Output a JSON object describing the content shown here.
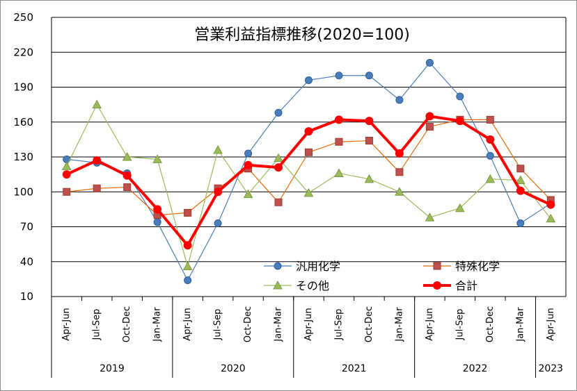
{
  "chart_data": {
    "type": "line",
    "title": "営業利益指標推移(2020=100)",
    "xlabel": "",
    "ylabel": "",
    "ylim": [
      10,
      250
    ],
    "yticks": [
      10,
      40,
      70,
      100,
      130,
      160,
      190,
      220,
      250
    ],
    "grid": "horizontal",
    "legend_position": "lower-right",
    "categories": [
      "Apr-Jun",
      "Jul-Sep",
      "Oct-Dec",
      "Jan-Mar",
      "Apr-Jun",
      "Jul-Sep",
      "Oct-Dec",
      "Jan-Mar",
      "Apr-Jun",
      "Jul-Sep",
      "Oct-Dec",
      "Jan-Mar",
      "Apr-Jun",
      "Jul-Sep",
      "Oct-Dec",
      "Jan-Mar",
      "Apr-Jun"
    ],
    "year_groups": [
      {
        "label": "2019",
        "span": 4
      },
      {
        "label": "2020",
        "span": 4
      },
      {
        "label": "2021",
        "span": 4
      },
      {
        "label": "2022",
        "span": 4
      },
      {
        "label": "2023",
        "span": 1
      }
    ],
    "series": [
      {
        "name": "汎用化学",
        "color": "#4a7ebb",
        "marker": "circle",
        "width": 1.2,
        "values": [
          128,
          125,
          116,
          74,
          24,
          73,
          133,
          168,
          196,
          200,
          200,
          179,
          211,
          182,
          131,
          73,
          90
        ]
      },
      {
        "name": "特殊化学",
        "color": "#e36c09",
        "marker": "square",
        "width": 1.2,
        "values": [
          100,
          103,
          104,
          80,
          82,
          103,
          120,
          91,
          134,
          143,
          144,
          117,
          156,
          162,
          162,
          120,
          93
        ]
      },
      {
        "name": "その他",
        "color": "#9bbb59",
        "marker": "triangle",
        "width": 1.2,
        "values": [
          122,
          175,
          130,
          128,
          36,
          136,
          98,
          129,
          99,
          116,
          111,
          100,
          78,
          86,
          111,
          110,
          77
        ]
      },
      {
        "name": "合計",
        "color": "#ff0000",
        "marker": "circle",
        "width": 4,
        "values": [
          115,
          127,
          114,
          85,
          54,
          100,
          123,
          121,
          152,
          162,
          161,
          133,
          165,
          161,
          145,
          101,
          89
        ]
      }
    ]
  }
}
